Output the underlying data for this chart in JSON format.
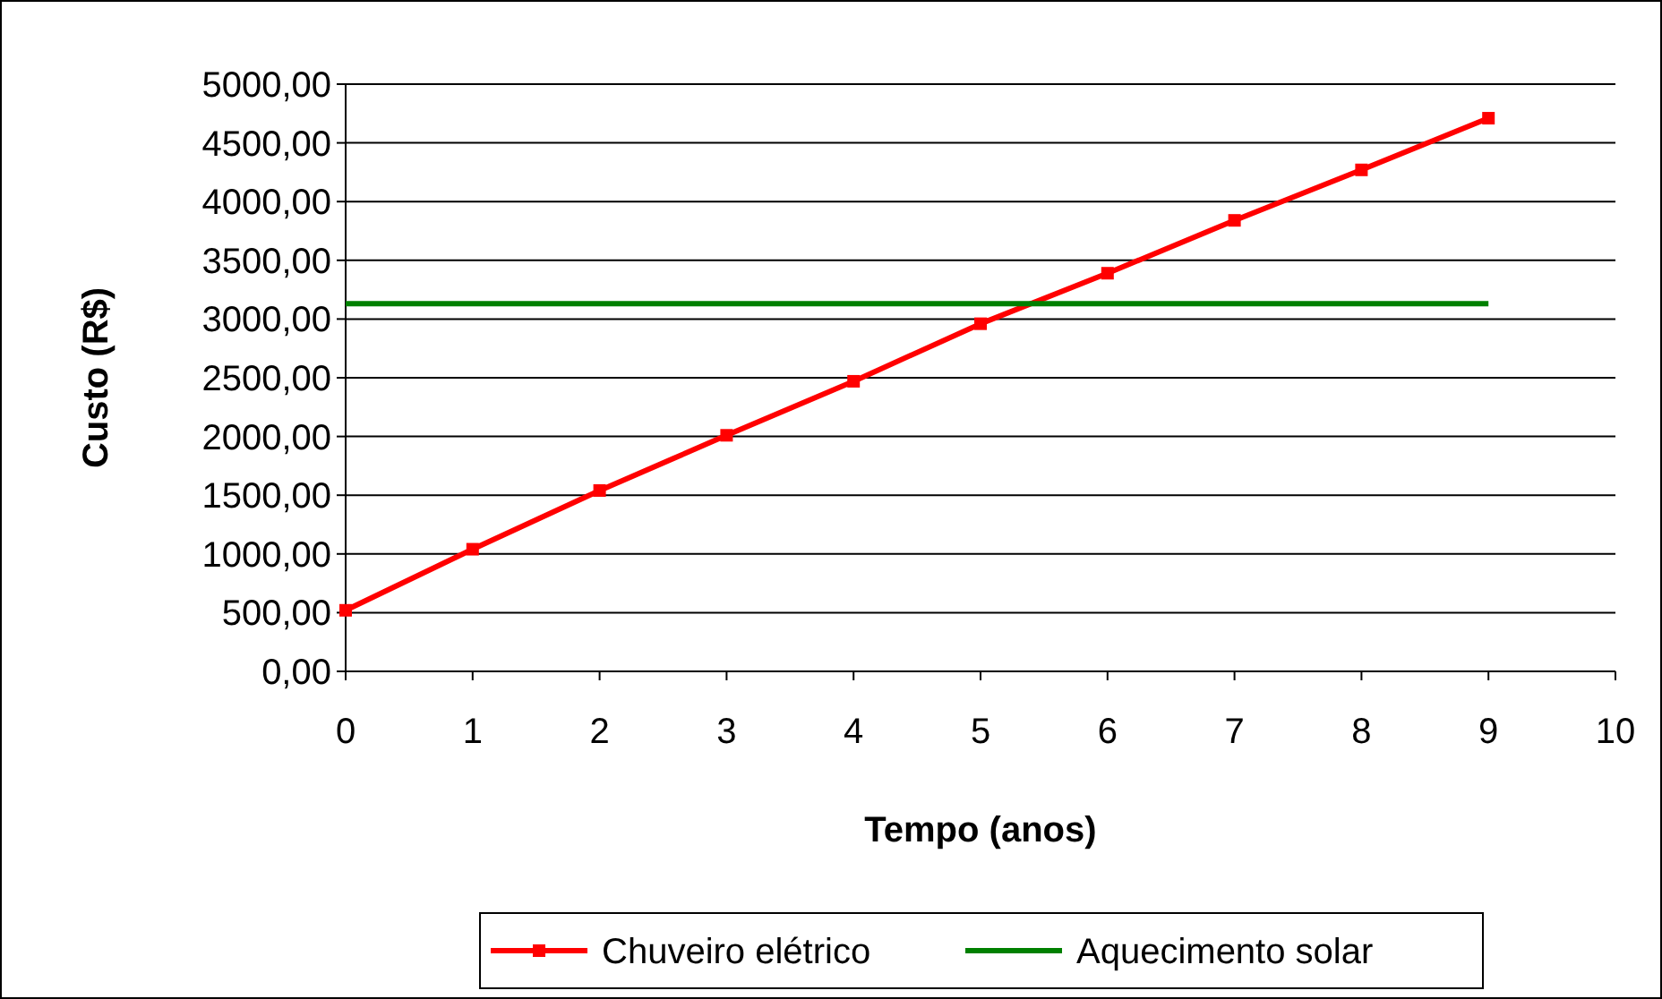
{
  "chart_data": {
    "type": "line",
    "xlabel": "Tempo (anos)",
    "ylabel": "Custo (R$)",
    "xlim": [
      0,
      10
    ],
    "xticks": [
      0,
      1,
      2,
      3,
      4,
      5,
      6,
      7,
      8,
      9,
      10
    ],
    "ylim": [
      0,
      5000
    ],
    "yticks": [
      {
        "value": 0,
        "label": "0,00"
      },
      {
        "value": 500,
        "label": "500,00"
      },
      {
        "value": 1000,
        "label": "1000,00"
      },
      {
        "value": 1500,
        "label": "1500,00"
      },
      {
        "value": 2000,
        "label": "2000,00"
      },
      {
        "value": 2500,
        "label": "2500,00"
      },
      {
        "value": 3000,
        "label": "3000,00"
      },
      {
        "value": 3500,
        "label": "3500,00"
      },
      {
        "value": 4000,
        "label": "4000,00"
      },
      {
        "value": 4500,
        "label": "4500,00"
      },
      {
        "value": 5000,
        "label": "5000,00"
      }
    ],
    "grid": "y",
    "legend": "bottom",
    "series": [
      {
        "name": "Chuveiro elétrico",
        "color": "#ff0000",
        "marker": "square",
        "x": [
          0,
          1,
          2,
          3,
          4,
          5,
          6,
          7,
          8,
          9
        ],
        "values": [
          520,
          1040,
          1540,
          2010,
          2470,
          2960,
          3390,
          3840,
          4270,
          4710
        ]
      },
      {
        "name": "Aquecimento solar",
        "color": "#008000",
        "marker": "none",
        "x": [
          0,
          9
        ],
        "values": [
          3130,
          3130
        ]
      }
    ]
  }
}
